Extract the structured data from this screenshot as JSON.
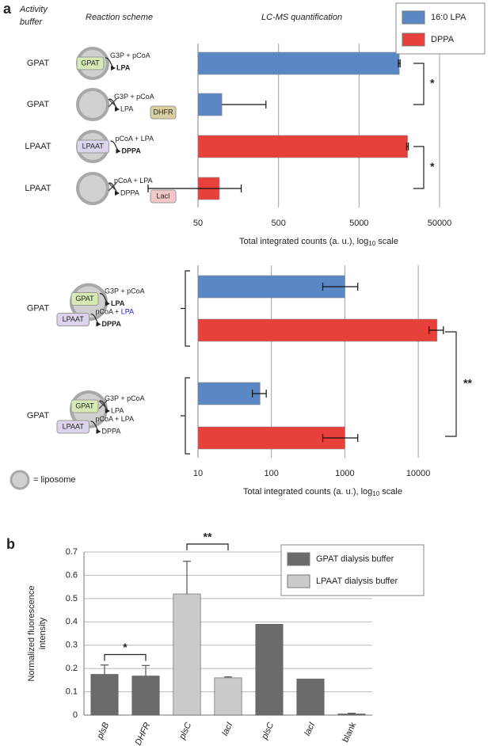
{
  "panel_labels": [
    "a",
    "b"
  ],
  "headers": {
    "activity_buffer": [
      "Activity",
      "buffer"
    ],
    "reaction_scheme": "Reaction scheme",
    "quantification": "LC-MS quantification"
  },
  "liposome_label": "= liposome",
  "chart_data": [
    {
      "type": "hbar",
      "xscale": "log",
      "categories": [
        "GPAT",
        "GPAT",
        "LPAAT",
        "LPAAT"
      ],
      "series": [
        {
          "name": "16:0 LPA",
          "color": "#5a88c4",
          "values": [
            15800,
            99,
            null,
            null
          ],
          "errors": [
            400,
            250,
            null,
            null
          ]
        },
        {
          "name": "DPPA",
          "color": "#e8413c",
          "values": [
            null,
            null,
            20000,
            92
          ],
          "errors": [
            null,
            null,
            500,
            80
          ]
        }
      ],
      "xlim": [
        50,
        50000
      ],
      "xticks": [
        50,
        500,
        5000,
        50000
      ],
      "grid": true,
      "xlabel": [
        "Total integrated counts (a. u.), log",
        "10",
        " scale"
      ],
      "significance": [
        "*",
        "*"
      ],
      "schemes": [
        {
          "enzyme": "GPAT",
          "enzyme_color": "#d7e9b4",
          "reaction": [
            "G3P + pCoA"
          ],
          "product": "LPA",
          "product_color": "#2222cc"
        },
        {
          "reaction": [
            "G3P + pCoA"
          ],
          "product": "LPA",
          "blocked": true,
          "tag": "DHFR",
          "tag_color": "#d9cfa0"
        },
        {
          "enzyme": "LPAAT",
          "enzyme_color": "#dcd3ec",
          "reaction": [
            "pCoA + LPA"
          ],
          "product": "DPPA",
          "product_color": "#dd2222"
        },
        {
          "reaction": [
            "pCoA + LPA"
          ],
          "product": "DPPA",
          "blocked": true,
          "tag": "LacI",
          "tag_color": "#f5c6c6"
        }
      ]
    },
    {
      "type": "grouped_hbar",
      "xscale": "log",
      "categories": [
        "GPAT",
        "GPAT"
      ],
      "series": [
        {
          "color": "#5a88c4",
          "values": [
            1000,
            70
          ],
          "errors": [
            500,
            15
          ]
        },
        {
          "color": "#e8413c",
          "values": [
            18000,
            1000
          ],
          "errors": [
            4000,
            500
          ]
        }
      ],
      "xlim": [
        10,
        25000
      ],
      "xticks": [
        10,
        100,
        1000,
        10000
      ],
      "grid": true,
      "xlabel": [
        "Total integrated counts (a. u.), log",
        "10",
        " scale"
      ],
      "significance": [
        "**"
      ],
      "schemes": [
        {
          "steps": [
            {
              "enzyme": "GPAT",
              "enzyme_color": "#d7e9b4",
              "reaction": [
                "G3P + pCoA"
              ],
              "product": "LPA",
              "product_color": "#2222cc"
            },
            {
              "enzyme": "LPAAT",
              "enzyme_color": "#dcd3ec",
              "reaction": [
                "pCoA + ",
                "LPA"
              ],
              "reaction_colors": [
                "#222222",
                "#2222cc"
              ],
              "product": "DPPA",
              "product_color": "#dd2222"
            }
          ]
        },
        {
          "steps": [
            {
              "enzyme": "GPAT",
              "enzyme_color": "#d7e9b4",
              "reaction": [
                "G3P + pCoA"
              ],
              "product": "LPA",
              "blocked": true
            },
            {
              "enzyme": "LPAAT",
              "enzyme_color": "#dcd3ec",
              "reaction": [
                "pCoA + LPA"
              ],
              "product": "DPPA"
            }
          ]
        }
      ]
    },
    {
      "type": "bar",
      "categories": [
        "plsB",
        "DHFR",
        "plsC",
        "lacI",
        "plsC",
        "lacI",
        "blank"
      ],
      "category_italic": [
        true,
        true,
        true,
        true,
        true,
        true,
        false
      ],
      "series": [
        {
          "name": "GPAT dialysis buffer",
          "color": "#6b6b6b",
          "values": [
            0.175,
            0.168,
            null,
            null,
            0.39,
            0.155,
            0.005
          ],
          "errors": [
            0.04,
            0.045,
            null,
            null,
            null,
            null,
            0.003
          ]
        },
        {
          "name": "LPAAT dialysis buffer",
          "color": "#cacaca",
          "values": [
            null,
            null,
            0.52,
            0.16,
            null,
            null,
            null
          ],
          "errors": [
            null,
            null,
            0.14,
            0.004,
            null,
            null,
            null
          ]
        }
      ],
      "ylim": [
        0,
        0.7
      ],
      "yticks": [
        0,
        0.1,
        0.2,
        0.3,
        0.4,
        0.5,
        0.6,
        0.7
      ],
      "grid": true,
      "ylabel": [
        "Normalized fluorescence",
        "intensity"
      ],
      "significance": [
        "*",
        "**"
      ]
    }
  ]
}
